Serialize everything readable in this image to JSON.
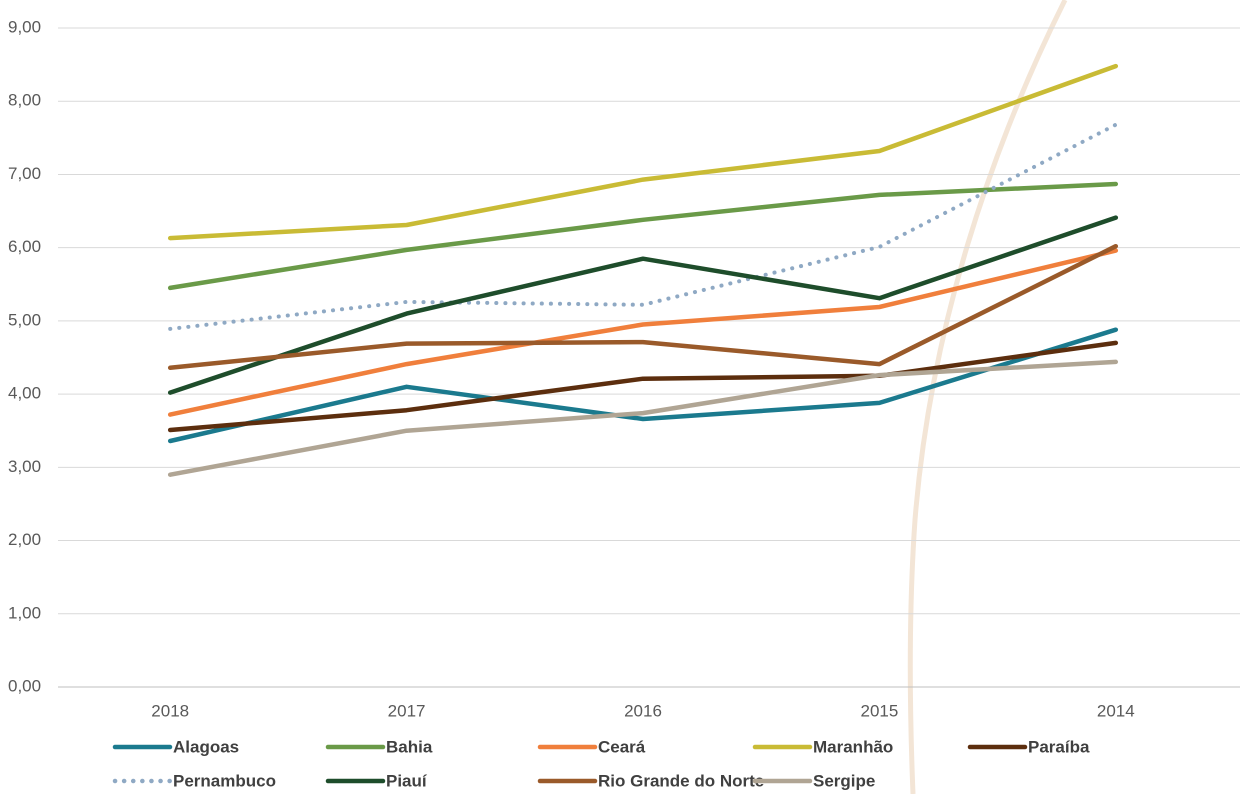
{
  "chart_data": {
    "type": "line",
    "categories": [
      "2018",
      "2017",
      "2016",
      "2015",
      "2014"
    ],
    "ylim": [
      0,
      9
    ],
    "yticks": [
      {
        "value": 0,
        "label": "0,00"
      },
      {
        "value": 1,
        "label": "1,00"
      },
      {
        "value": 2,
        "label": "2,00"
      },
      {
        "value": 3,
        "label": "3,00"
      },
      {
        "value": 4,
        "label": "4,00"
      },
      {
        "value": 5,
        "label": "5,00"
      },
      {
        "value": 6,
        "label": "6,00"
      },
      {
        "value": 7,
        "label": "7,00"
      },
      {
        "value": 8,
        "label": "8,00"
      },
      {
        "value": 9,
        "label": "9,00"
      }
    ],
    "grid": true,
    "legend": "bottom",
    "series": [
      {
        "name": "Alagoas",
        "color": "#1b7a8e",
        "values": [
          3.36,
          4.1,
          3.66,
          3.88,
          4.88
        ]
      },
      {
        "name": "Bahia",
        "color": "#6a9a48",
        "values": [
          5.45,
          5.97,
          6.38,
          6.72,
          6.87
        ]
      },
      {
        "name": "Ceará",
        "color": "#f07f3c",
        "values": [
          3.72,
          4.41,
          4.95,
          5.19,
          5.96
        ]
      },
      {
        "name": "Maranhão",
        "color": "#c9bb35",
        "values": [
          6.13,
          6.31,
          6.93,
          7.32,
          8.48
        ]
      },
      {
        "name": "Paraíba",
        "color": "#5c2e0e",
        "values": [
          3.51,
          3.78,
          4.21,
          4.25,
          4.7
        ]
      },
      {
        "name": "Pernambuco",
        "color": "#8fa9c4",
        "dash": "dotted",
        "values": [
          4.89,
          5.26,
          5.22,
          6.01,
          7.68
        ]
      },
      {
        "name": "Piauí",
        "color": "#1e4d2b",
        "values": [
          4.02,
          5.1,
          5.85,
          5.31,
          6.41
        ]
      },
      {
        "name": "Rio Grande do Norte",
        "color": "#9a5a2a",
        "values": [
          4.36,
          4.69,
          4.71,
          4.41,
          6.02
        ]
      },
      {
        "name": "Sergipe",
        "color": "#b0a594",
        "values": [
          2.9,
          3.5,
          3.74,
          4.26,
          4.44
        ]
      }
    ]
  }
}
